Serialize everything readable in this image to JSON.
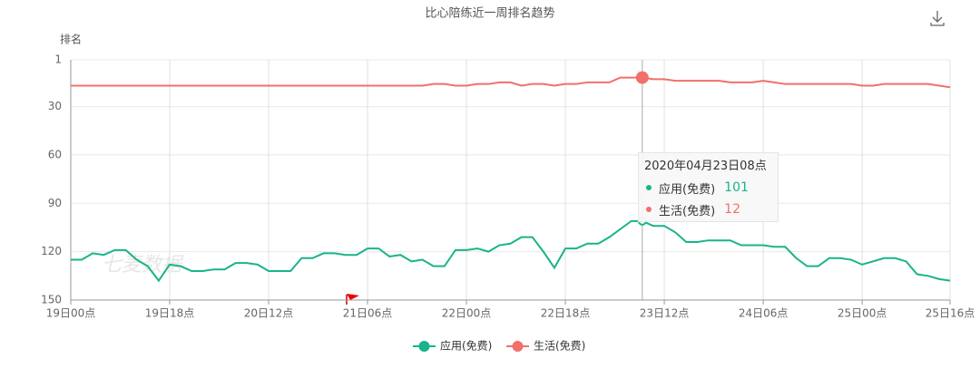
{
  "chart_data": {
    "type": "line",
    "title": "比心陪练近一周排名趋势",
    "y_label": "排名",
    "watermark": "七麦数据",
    "categories": [
      "19日00点",
      null,
      null,
      null,
      null,
      null,
      null,
      null,
      null,
      "19日18点",
      null,
      null,
      null,
      null,
      null,
      null,
      null,
      null,
      "20日12点",
      null,
      null,
      null,
      null,
      null,
      null,
      null,
      null,
      "21日06点",
      null,
      null,
      null,
      null,
      null,
      null,
      null,
      null,
      "22日00点",
      null,
      null,
      null,
      null,
      null,
      null,
      null,
      null,
      "22日18点",
      null,
      null,
      null,
      null,
      null,
      null,
      null,
      null,
      "23日12点",
      null,
      null,
      null,
      null,
      null,
      null,
      null,
      null,
      "24日06点",
      null,
      null,
      null,
      null,
      null,
      null,
      null,
      null,
      "25日00点",
      null,
      null,
      null,
      null,
      null,
      null,
      null,
      "25日16点"
    ],
    "series": [
      {
        "name": "应用(免费)",
        "color": "#19b48a",
        "values": [
          125,
          125,
          121,
          122,
          119,
          119,
          125,
          129,
          138,
          128,
          129,
          132,
          132,
          131,
          131,
          127,
          127,
          128,
          132,
          132,
          132,
          124,
          124,
          121,
          121,
          122,
          122,
          118,
          118,
          123,
          122,
          126,
          125,
          129,
          129,
          119,
          119,
          118,
          120,
          116,
          115,
          111,
          111,
          120,
          130,
          118,
          118,
          115,
          115,
          111,
          106,
          101,
          101,
          104,
          104,
          108,
          114,
          114,
          113,
          113,
          113,
          116,
          116,
          116,
          117,
          117,
          124,
          129,
          129,
          124,
          124,
          125,
          128,
          126,
          124,
          124,
          126,
          134,
          135,
          137,
          138
        ]
      },
      {
        "name": "生活(免费)",
        "color": "#f1706a",
        "values": [
          17,
          17,
          17,
          17,
          17,
          17,
          17,
          17,
          17,
          17,
          17,
          17,
          17,
          17,
          17,
          17,
          17,
          17,
          17,
          17,
          17,
          17,
          17,
          17,
          17,
          17,
          17,
          17,
          17,
          17,
          17,
          17,
          17,
          16,
          16,
          17,
          17,
          16,
          16,
          15,
          15,
          17,
          16,
          16,
          17,
          16,
          16,
          15,
          15,
          15,
          12,
          12,
          12,
          13,
          13,
          14,
          14,
          14,
          14,
          14,
          15,
          15,
          15,
          14,
          15,
          16,
          16,
          16,
          16,
          16,
          16,
          16,
          17,
          17,
          16,
          16,
          16,
          16,
          16,
          17,
          18
        ]
      }
    ],
    "ylim": [
      1,
      150
    ],
    "y_inverted": true,
    "yticks": [
      1,
      30,
      60,
      90,
      120,
      150
    ],
    "grid": true,
    "tooltip": {
      "title": "2020年04月23日08点"
    }
  }
}
